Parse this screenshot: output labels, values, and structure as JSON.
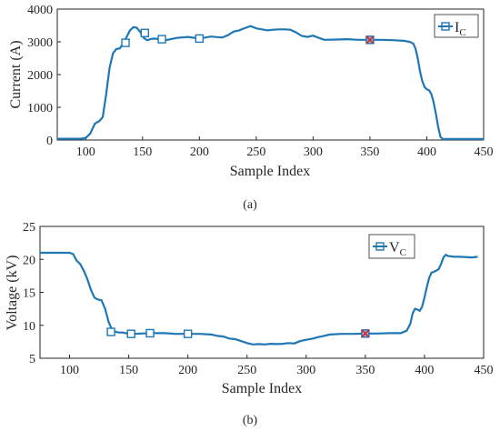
{
  "chart_data": [
    {
      "type": "line",
      "caption": "(a)",
      "xlabel": "Sample Index",
      "ylabel": "Current (A)",
      "xlim": [
        75,
        450
      ],
      "ylim": [
        0,
        4000
      ],
      "xticks": [
        100,
        150,
        200,
        250,
        300,
        350,
        400,
        450
      ],
      "xtick_labels": [
        "100",
        "150",
        "200",
        "250",
        "300",
        "350",
        "400",
        "450"
      ],
      "yticks": [
        0,
        1000,
        2000,
        3000,
        4000
      ],
      "ytick_labels": [
        "0",
        "1000",
        "2000",
        "3000",
        "4000"
      ],
      "grid": false,
      "legend_position": "top-right",
      "series": [
        {
          "legend_main": "I",
          "legend_sub": "C",
          "color": "#1f77b4",
          "x": [
            75,
            95,
            100,
            104,
            108,
            112,
            115,
            118,
            121,
            124,
            127,
            130,
            133,
            136,
            139,
            142,
            145,
            148,
            151,
            154,
            157,
            160,
            165,
            170,
            175,
            180,
            190,
            200,
            210,
            220,
            225,
            230,
            235,
            240,
            245,
            250,
            255,
            260,
            265,
            270,
            275,
            280,
            285,
            290,
            295,
            300,
            305,
            310,
            320,
            330,
            340,
            350,
            360,
            370,
            380,
            385,
            388,
            390,
            392,
            394,
            396,
            398,
            400,
            402,
            404,
            406,
            408,
            410,
            412,
            414,
            416,
            420,
            430,
            450
          ],
          "y": [
            40,
            40,
            60,
            200,
            500,
            580,
            700,
            1400,
            2200,
            2650,
            2780,
            2800,
            2950,
            3150,
            3350,
            3450,
            3430,
            3300,
            3120,
            3050,
            3080,
            3100,
            3080,
            3050,
            3080,
            3120,
            3150,
            3100,
            3160,
            3130,
            3200,
            3310,
            3350,
            3420,
            3480,
            3410,
            3380,
            3350,
            3370,
            3380,
            3380,
            3370,
            3290,
            3180,
            3150,
            3190,
            3120,
            3060,
            3070,
            3080,
            3060,
            3060,
            3060,
            3050,
            3030,
            3000,
            2950,
            2800,
            2500,
            2100,
            1800,
            1620,
            1550,
            1520,
            1400,
            1150,
            800,
            400,
            100,
            30,
            30,
            30,
            30,
            30
          ],
          "markers": [
            [
              135,
              2970
            ],
            [
              152,
              3270
            ],
            [
              167,
              3080
            ],
            [
              200,
              3100
            ],
            [
              350,
              3060
            ]
          ],
          "highlight_x": 350
        }
      ]
    },
    {
      "type": "line",
      "caption": "(b)",
      "xlabel": "Sample Index",
      "ylabel": "Voltage (kV)",
      "xlim": [
        75,
        450
      ],
      "ylim": [
        5,
        25
      ],
      "xticks": [
        100,
        150,
        200,
        250,
        300,
        350,
        400,
        450
      ],
      "xtick_labels": [
        "100",
        "150",
        "200",
        "250",
        "300",
        "350",
        "400",
        "450"
      ],
      "yticks": [
        5,
        10,
        15,
        20,
        25
      ],
      "ytick_labels": [
        "5",
        "10",
        "15",
        "20",
        "25"
      ],
      "grid": false,
      "legend_position": "top-right",
      "series": [
        {
          "legend_main": "V",
          "legend_sub": "C",
          "color": "#1f77b4",
          "x": [
            75,
            100,
            103,
            106,
            109,
            112,
            115,
            118,
            121,
            124,
            127,
            130,
            133,
            136,
            139,
            142,
            145,
            150,
            155,
            160,
            170,
            180,
            190,
            200,
            210,
            220,
            225,
            230,
            235,
            240,
            245,
            250,
            255,
            260,
            265,
            270,
            275,
            280,
            285,
            290,
            295,
            300,
            305,
            310,
            315,
            320,
            330,
            340,
            350,
            360,
            370,
            380,
            385,
            388,
            390,
            392,
            394,
            396,
            398,
            400,
            402,
            404,
            406,
            408,
            410,
            412,
            414,
            416,
            418,
            420,
            425,
            430,
            440,
            445
          ],
          "y": [
            21,
            21,
            20.8,
            19.8,
            19.3,
            18.3,
            17.0,
            15.4,
            14.2,
            13.9,
            13.8,
            12.5,
            10.5,
            9.3,
            9.0,
            8.9,
            8.9,
            8.7,
            8.7,
            8.75,
            8.8,
            8.8,
            8.7,
            8.7,
            8.7,
            8.6,
            8.4,
            8.3,
            8.0,
            7.9,
            7.6,
            7.3,
            7.1,
            7.15,
            7.1,
            7.2,
            7.15,
            7.2,
            7.3,
            7.25,
            7.6,
            7.8,
            7.95,
            8.2,
            8.4,
            8.6,
            8.7,
            8.7,
            8.75,
            8.75,
            8.8,
            8.8,
            9.2,
            10.2,
            11.8,
            12.5,
            12.4,
            12.2,
            12.8,
            14.2,
            15.8,
            17.2,
            18.0,
            18.1,
            18.3,
            18.5,
            19.3,
            20.3,
            20.7,
            20.5,
            20.4,
            20.4,
            20.3,
            20.4
          ],
          "markers": [
            [
              135,
              9.0
            ],
            [
              152,
              8.7
            ],
            [
              168,
              8.8
            ],
            [
              200,
              8.7
            ],
            [
              350,
              8.75
            ]
          ],
          "highlight_x": 350
        }
      ]
    }
  ]
}
